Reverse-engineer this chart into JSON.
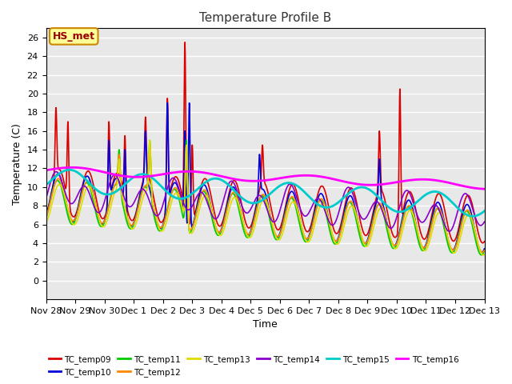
{
  "title": "Temperature Profile B",
  "xlabel": "Time",
  "ylabel": "Temperature (C)",
  "ylim": [
    -2,
    27
  ],
  "yticks": [
    0,
    2,
    4,
    6,
    8,
    10,
    12,
    14,
    16,
    18,
    20,
    22,
    24,
    26
  ],
  "annotation_text": "HS_met",
  "annotation_bg": "#FFFF99",
  "annotation_border": "#CC8800",
  "annotation_text_color": "#990000",
  "bg_color": "#E8E8E8",
  "series": [
    {
      "name": "TC_temp09",
      "color": "#DD0000",
      "lw": 1.2
    },
    {
      "name": "TC_temp10",
      "color": "#0000DD",
      "lw": 1.2
    },
    {
      "name": "TC_temp11",
      "color": "#00CC00",
      "lw": 1.2
    },
    {
      "name": "TC_temp12",
      "color": "#FF8800",
      "lw": 1.2
    },
    {
      "name": "TC_temp13",
      "color": "#DDDD00",
      "lw": 1.2
    },
    {
      "name": "TC_temp14",
      "color": "#8800CC",
      "lw": 1.2
    },
    {
      "name": "TC_temp15",
      "color": "#00CCCC",
      "lw": 2.0
    },
    {
      "name": "TC_temp16",
      "color": "#FF00FF",
      "lw": 2.0
    }
  ],
  "xtick_labels": [
    "Nov 28",
    "Nov 29",
    "Nov 30",
    "Dec 1",
    "Dec 2",
    "Dec 3",
    "Dec 4",
    "Dec 5",
    "Dec 6",
    "Dec 7",
    "Dec 8",
    "Dec 9",
    "Dec 10",
    "Dec 11",
    "Dec 12",
    "Dec 13"
  ],
  "legend_ncol_row1": 6,
  "legend_ncol_row2": 2
}
